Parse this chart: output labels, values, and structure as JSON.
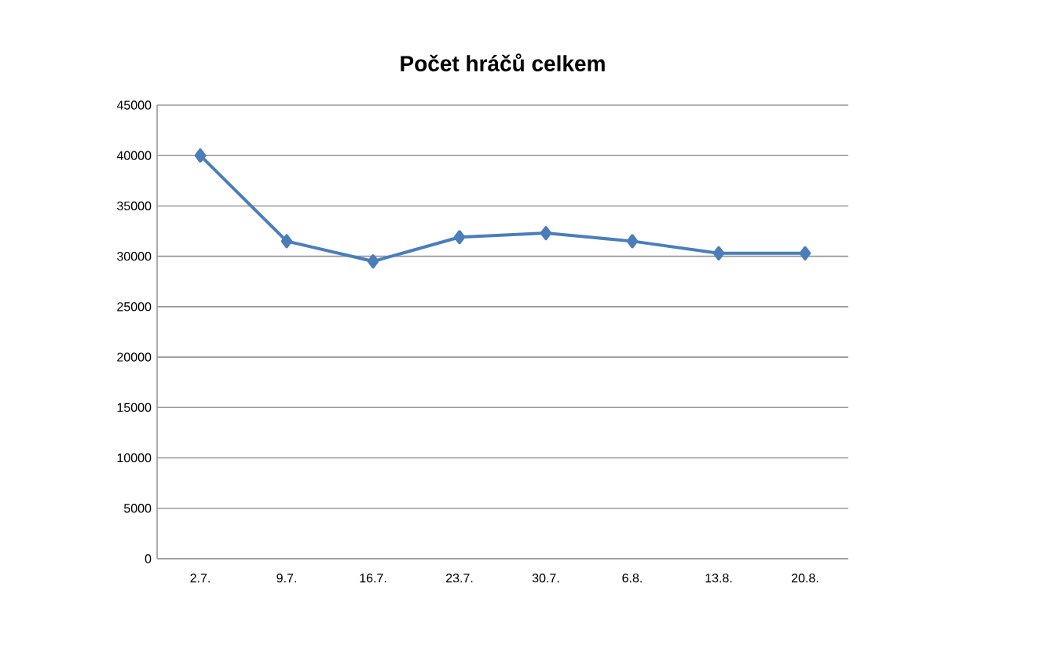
{
  "chart_data": {
    "type": "line",
    "title": "Počet hráčů celkem",
    "categories": [
      "2.7.",
      "9.7.",
      "16.7.",
      "23.7.",
      "30.7.",
      "6.8.",
      "13.8.",
      "20.8."
    ],
    "series": [
      {
        "color": "#4a7ebb",
        "values": [
          40000,
          31500,
          29500,
          31900,
          32300,
          31500,
          30300,
          30300
        ]
      }
    ],
    "ylim": [
      0,
      45000
    ],
    "yticks": [
      0,
      5000,
      10000,
      15000,
      20000,
      25000,
      30000,
      35000,
      40000,
      45000
    ],
    "grid": "y",
    "marker": "diamond",
    "line_style": "solid"
  }
}
